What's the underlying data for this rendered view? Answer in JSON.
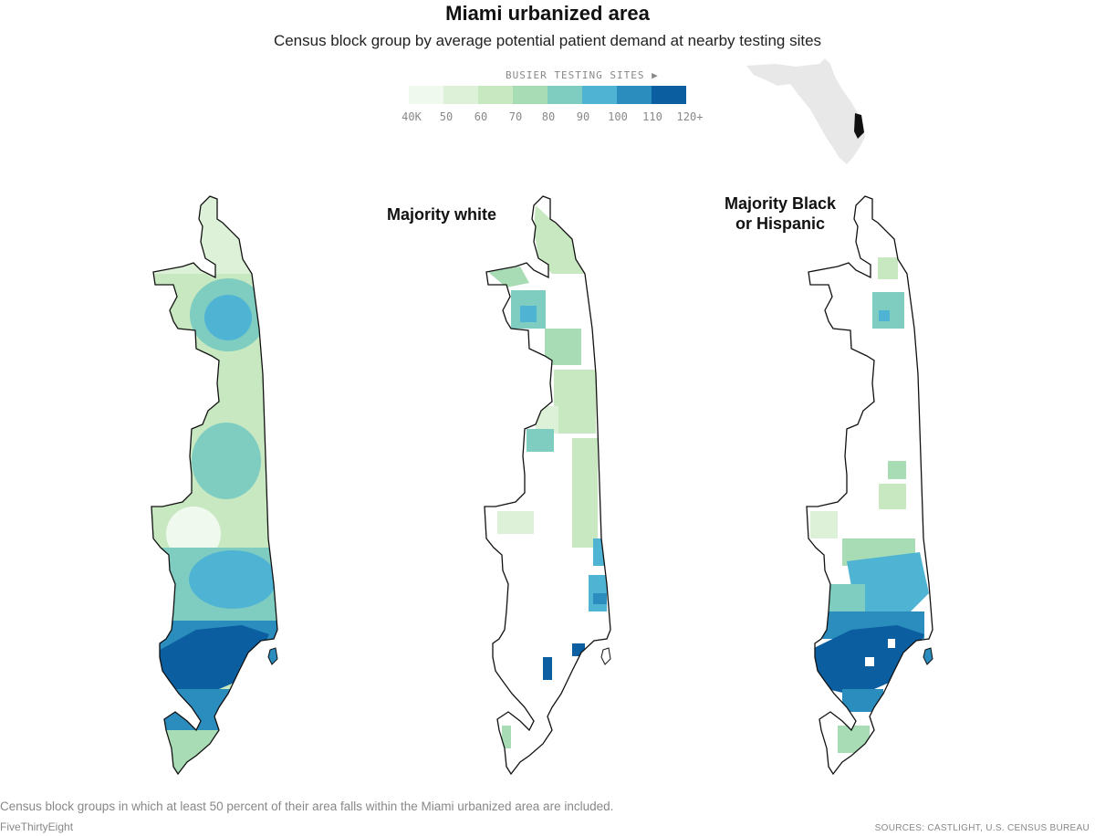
{
  "header": {
    "title": "Miami urbanized area",
    "subtitle": "Census block group by average potential patient demand at nearby testing sites"
  },
  "legend": {
    "heading": "BUSIER TESTING SITES ▶",
    "ticks": [
      "40K",
      "50",
      "60",
      "70",
      "80",
      "90",
      "100",
      "110",
      "120+"
    ],
    "colors": [
      "#f0f9ee",
      "#dcf1d7",
      "#c7e8c1",
      "#a8dcb5",
      "#7fcdc0",
      "#4fb3d4",
      "#2b8cbe",
      "#0b5ea0"
    ]
  },
  "panels": {
    "all": {
      "label": ""
    },
    "white": {
      "label": "Majority white"
    },
    "black_hispanic": {
      "label_line1": "Majority Black",
      "label_line2": "or Hispanic"
    }
  },
  "footer": {
    "note": "Census block groups in which at least 50 percent of their area falls within the Miami urbanized area are included.",
    "credit": "FiveThirtyEight",
    "sources": "SOURCES: CASTLIGHT, U.S. CENSUS BUREAU"
  },
  "inset": {
    "region": "Florida",
    "highlight_color": "#111111",
    "fill_color": "#e8e8e8"
  }
}
